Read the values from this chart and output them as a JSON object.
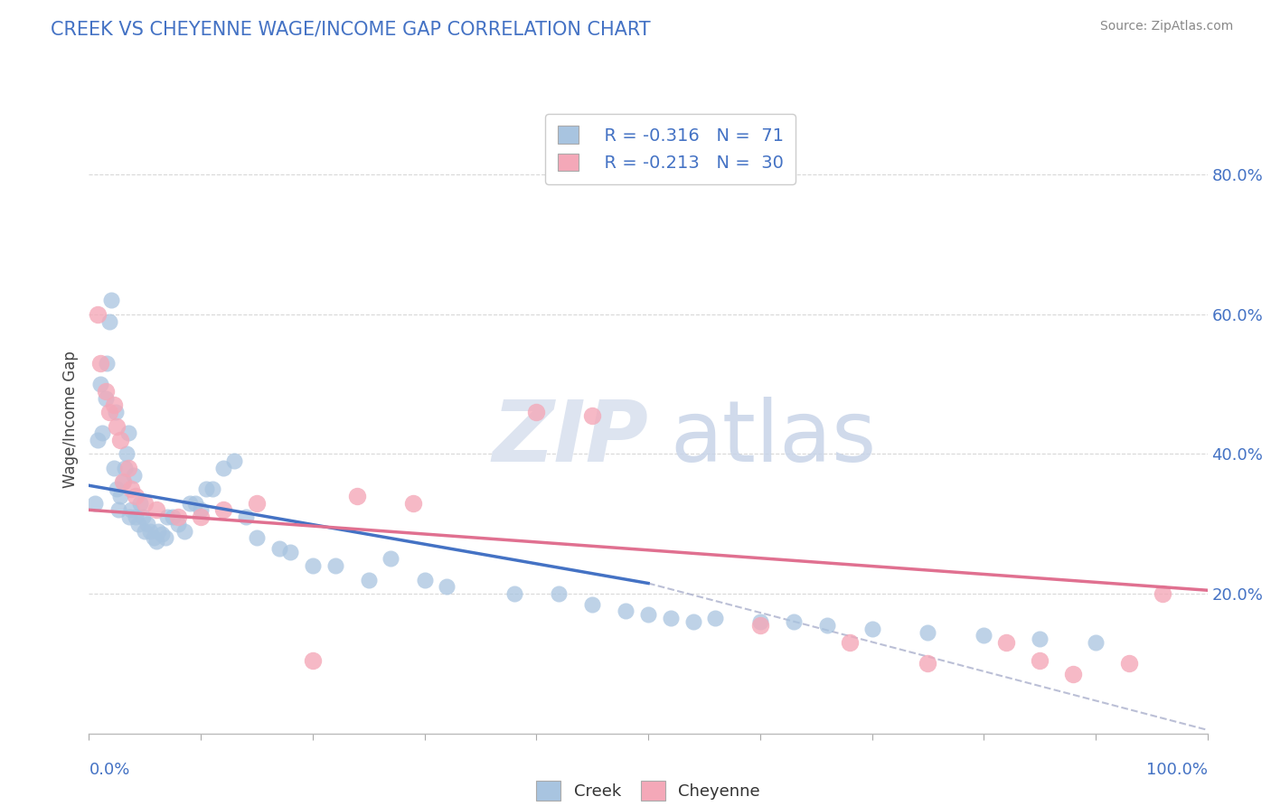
{
  "title": "CREEK VS CHEYENNE WAGE/INCOME GAP CORRELATION CHART",
  "source": "Source: ZipAtlas.com",
  "ylabel": "Wage/Income Gap",
  "legend_creek": "Creek",
  "legend_cheyenne": "Cheyenne",
  "creek_color": "#a8c4e0",
  "cheyenne_color": "#f4a8b8",
  "creek_line_color": "#4472c4",
  "cheyenne_line_color": "#e07090",
  "dashed_line_color": "#aab0cc",
  "creek_scatter": [
    [
      0.005,
      0.33
    ],
    [
      0.008,
      0.42
    ],
    [
      0.01,
      0.5
    ],
    [
      0.012,
      0.43
    ],
    [
      0.015,
      0.48
    ],
    [
      0.016,
      0.53
    ],
    [
      0.018,
      0.59
    ],
    [
      0.02,
      0.62
    ],
    [
      0.022,
      0.38
    ],
    [
      0.024,
      0.46
    ],
    [
      0.025,
      0.35
    ],
    [
      0.026,
      0.32
    ],
    [
      0.028,
      0.34
    ],
    [
      0.03,
      0.36
    ],
    [
      0.032,
      0.38
    ],
    [
      0.034,
      0.4
    ],
    [
      0.035,
      0.43
    ],
    [
      0.036,
      0.31
    ],
    [
      0.038,
      0.32
    ],
    [
      0.04,
      0.37
    ],
    [
      0.042,
      0.31
    ],
    [
      0.044,
      0.3
    ],
    [
      0.046,
      0.33
    ],
    [
      0.048,
      0.31
    ],
    [
      0.05,
      0.29
    ],
    [
      0.052,
      0.3
    ],
    [
      0.055,
      0.29
    ],
    [
      0.058,
      0.28
    ],
    [
      0.06,
      0.275
    ],
    [
      0.062,
      0.29
    ],
    [
      0.065,
      0.285
    ],
    [
      0.068,
      0.28
    ],
    [
      0.07,
      0.31
    ],
    [
      0.075,
      0.31
    ],
    [
      0.08,
      0.3
    ],
    [
      0.085,
      0.29
    ],
    [
      0.09,
      0.33
    ],
    [
      0.095,
      0.33
    ],
    [
      0.1,
      0.32
    ],
    [
      0.105,
      0.35
    ],
    [
      0.11,
      0.35
    ],
    [
      0.12,
      0.38
    ],
    [
      0.13,
      0.39
    ],
    [
      0.14,
      0.31
    ],
    [
      0.15,
      0.28
    ],
    [
      0.17,
      0.265
    ],
    [
      0.18,
      0.26
    ],
    [
      0.2,
      0.24
    ],
    [
      0.22,
      0.24
    ],
    [
      0.25,
      0.22
    ],
    [
      0.27,
      0.25
    ],
    [
      0.3,
      0.22
    ],
    [
      0.32,
      0.21
    ],
    [
      0.38,
      0.2
    ],
    [
      0.42,
      0.2
    ],
    [
      0.45,
      0.185
    ],
    [
      0.48,
      0.175
    ],
    [
      0.5,
      0.17
    ],
    [
      0.52,
      0.165
    ],
    [
      0.54,
      0.16
    ],
    [
      0.56,
      0.165
    ],
    [
      0.6,
      0.16
    ],
    [
      0.63,
      0.16
    ],
    [
      0.66,
      0.155
    ],
    [
      0.7,
      0.15
    ],
    [
      0.75,
      0.145
    ],
    [
      0.8,
      0.14
    ],
    [
      0.85,
      0.135
    ],
    [
      0.9,
      0.13
    ]
  ],
  "cheyenne_scatter": [
    [
      0.008,
      0.6
    ],
    [
      0.01,
      0.53
    ],
    [
      0.015,
      0.49
    ],
    [
      0.018,
      0.46
    ],
    [
      0.022,
      0.47
    ],
    [
      0.025,
      0.44
    ],
    [
      0.028,
      0.42
    ],
    [
      0.03,
      0.36
    ],
    [
      0.035,
      0.38
    ],
    [
      0.038,
      0.35
    ],
    [
      0.042,
      0.34
    ],
    [
      0.05,
      0.33
    ],
    [
      0.06,
      0.32
    ],
    [
      0.08,
      0.31
    ],
    [
      0.1,
      0.31
    ],
    [
      0.12,
      0.32
    ],
    [
      0.15,
      0.33
    ],
    [
      0.2,
      0.105
    ],
    [
      0.24,
      0.34
    ],
    [
      0.29,
      0.33
    ],
    [
      0.4,
      0.46
    ],
    [
      0.45,
      0.455
    ],
    [
      0.6,
      0.155
    ],
    [
      0.68,
      0.13
    ],
    [
      0.75,
      0.1
    ],
    [
      0.82,
      0.13
    ],
    [
      0.85,
      0.105
    ],
    [
      0.88,
      0.085
    ],
    [
      0.93,
      0.1
    ],
    [
      0.96,
      0.2
    ]
  ],
  "creek_line": [
    [
      0.0,
      0.355
    ],
    [
      0.5,
      0.215
    ]
  ],
  "cheyenne_line": [
    [
      0.0,
      0.32
    ],
    [
      1.0,
      0.205
    ]
  ],
  "dashed_line": [
    [
      0.5,
      0.215
    ],
    [
      1.0,
      0.005
    ]
  ],
  "xlim": [
    0.0,
    1.0
  ],
  "ylim": [
    0.0,
    0.9
  ],
  "y_ticks": [
    0.2,
    0.4,
    0.6,
    0.8
  ],
  "y_tick_labels": [
    "20.0%",
    "40.0%",
    "60.0%",
    "80.0%"
  ],
  "x_tick_minor": [
    0.0,
    0.1,
    0.2,
    0.3,
    0.4,
    0.5,
    0.6,
    0.7,
    0.8,
    0.9,
    1.0
  ],
  "background_color": "#ffffff",
  "grid_color": "#d8d8d8"
}
